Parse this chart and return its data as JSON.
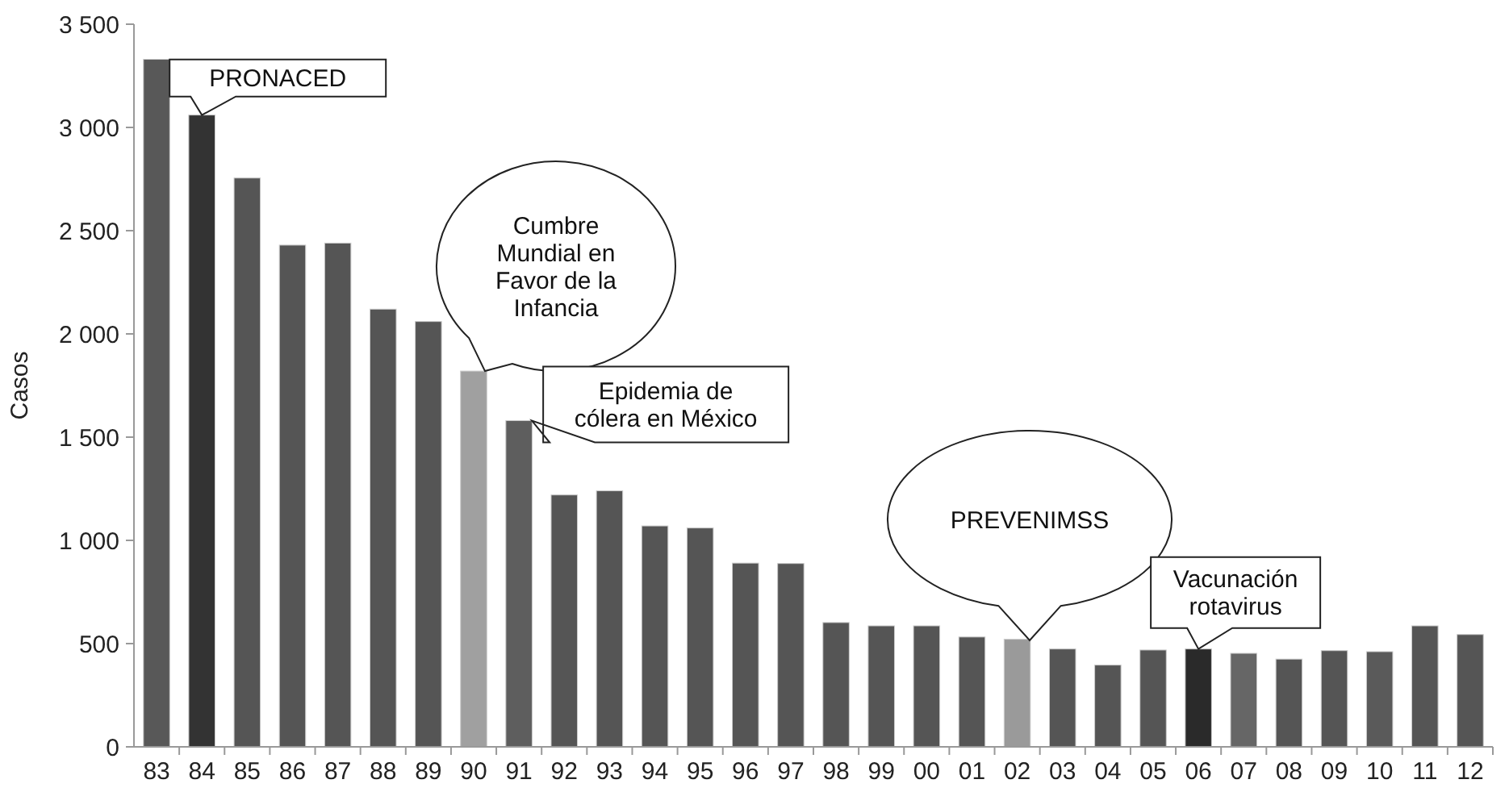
{
  "chart_data": {
    "type": "bar",
    "ylabel": "Casos",
    "categories": [
      "83",
      "84",
      "85",
      "86",
      "87",
      "88",
      "89",
      "90",
      "91",
      "92",
      "93",
      "94",
      "95",
      "96",
      "97",
      "98",
      "99",
      "00",
      "01",
      "02",
      "03",
      "04",
      "05",
      "06",
      "07",
      "08",
      "09",
      "10",
      "11",
      "12"
    ],
    "values": [
      3330,
      3060,
      2755,
      2430,
      2440,
      2120,
      2060,
      1820,
      1580,
      1220,
      1240,
      1070,
      1060,
      890,
      888,
      602,
      586,
      586,
      532,
      521,
      474,
      396,
      469,
      474,
      453,
      425,
      466,
      461,
      586,
      544
    ],
    "colors": [
      "#585858",
      "#333333",
      "#555555",
      "#555555",
      "#555555",
      "#555555",
      "#555555",
      "#a0a0a0",
      "#5e5e5e",
      "#555555",
      "#555555",
      "#555555",
      "#555555",
      "#555555",
      "#555555",
      "#555555",
      "#555555",
      "#555555",
      "#555555",
      "#9a9a9a",
      "#555555",
      "#555555",
      "#555555",
      "#2a2a2a",
      "#666666",
      "#555555",
      "#555555",
      "#5a5a5a",
      "#555555",
      "#555555"
    ],
    "ylim": [
      0,
      3500
    ],
    "yticks": [
      0,
      {
        "value": 500,
        "label": "500"
      },
      {
        "value": 1000,
        "label": "1 000"
      },
      {
        "value": 1500,
        "label": "1 500"
      },
      {
        "value": 2000,
        "label": "2 000"
      },
      {
        "value": 2500,
        "label": "2 500"
      },
      {
        "value": 3000,
        "label": "3 000"
      },
      {
        "value": 3500,
        "label": "3 500"
      }
    ],
    "grid": false,
    "annotations": [
      {
        "text": "PRONACED",
        "x": "84",
        "y": 3060
      },
      {
        "text": "Cumbre\nMundial en\nFavor de la\nInfancia",
        "x": "90",
        "y": 1820
      },
      {
        "text": "Epidemia de\ncólera en México",
        "x": "91",
        "y": 1580
      },
      "PREVENIMSS",
      {
        "text": "Vacunación\nrotavirus",
        "x": "06",
        "y": 474
      }
    ]
  }
}
